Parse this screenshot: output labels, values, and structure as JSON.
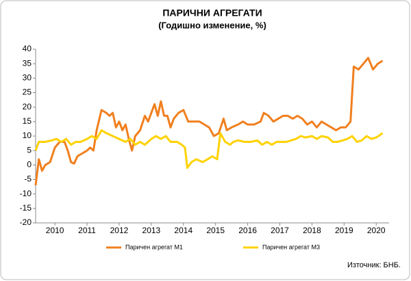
{
  "chart_data": {
    "type": "line",
    "title": "ПАРИЧНИ  АГРЕГАТИ",
    "subtitle": "(Годишно  изменение, %)",
    "source": "Източник: БНБ.",
    "xlim": [
      2009.9,
      2020.9
    ],
    "xticks": [
      {
        "value": 2010.5,
        "label": "2010"
      },
      {
        "value": 2011.5,
        "label": "2011"
      },
      {
        "value": 2012.5,
        "label": "2012"
      },
      {
        "value": 2013.5,
        "label": "2013"
      },
      {
        "value": 2014.5,
        "label": "2014"
      },
      {
        "value": 2015.5,
        "label": "2015"
      },
      {
        "value": 2016.5,
        "label": "2016"
      },
      {
        "value": 2017.5,
        "label": "2017"
      },
      {
        "value": 2018.5,
        "label": "2018"
      },
      {
        "value": 2019.5,
        "label": "2019"
      },
      {
        "value": 2020.5,
        "label": "2020"
      }
    ],
    "ylim": [
      -20,
      40
    ],
    "yticks": [
      -20,
      -15,
      -10,
      -5,
      0,
      5,
      10,
      15,
      20,
      25,
      30,
      35,
      40
    ],
    "legend": "bottom",
    "series": [
      {
        "name": "Паричен агрегат М1",
        "color": "#f07f1e",
        "x": [
          2009.9,
          2010.0,
          2010.1,
          2010.2,
          2010.35,
          2010.5,
          2010.65,
          2010.8,
          2010.9,
          2011.0,
          2011.1,
          2011.2,
          2011.35,
          2011.5,
          2011.6,
          2011.7,
          2011.8,
          2011.95,
          2012.1,
          2012.2,
          2012.3,
          2012.4,
          2012.5,
          2012.6,
          2012.7,
          2012.8,
          2012.9,
          2013.0,
          2013.15,
          2013.3,
          2013.4,
          2013.5,
          2013.6,
          2013.7,
          2013.8,
          2013.9,
          2014.0,
          2014.1,
          2014.2,
          2014.35,
          2014.5,
          2014.65,
          2014.8,
          2015.0,
          2015.15,
          2015.3,
          2015.45,
          2015.6,
          2015.75,
          2015.85,
          2016.0,
          2016.2,
          2016.35,
          2016.5,
          2016.7,
          2016.9,
          2017.0,
          2017.15,
          2017.3,
          2017.45,
          2017.6,
          2017.75,
          2017.9,
          2018.05,
          2018.2,
          2018.35,
          2018.5,
          2018.65,
          2018.8,
          2018.95,
          2019.1,
          2019.25,
          2019.4,
          2019.55,
          2019.7,
          2019.8,
          2019.95,
          2020.1,
          2020.25,
          2020.4,
          2020.55,
          2020.7
        ],
        "values": [
          -7,
          2,
          -2,
          0,
          1,
          6,
          8,
          8,
          5,
          1,
          0.5,
          3,
          4,
          5,
          6,
          5,
          12,
          19,
          18,
          17,
          18,
          13,
          15,
          12,
          14,
          9,
          5,
          10,
          12,
          17,
          15,
          18,
          21,
          17,
          22,
          17,
          17,
          13,
          16,
          18,
          19,
          15,
          15,
          15,
          14,
          13,
          10,
          11,
          16,
          12,
          13,
          14,
          15,
          14,
          14,
          15,
          18,
          17,
          15,
          16,
          17,
          17,
          16,
          17,
          16,
          14,
          15,
          13,
          15,
          14,
          13,
          12,
          13,
          13,
          15,
          34,
          33,
          35,
          37,
          33,
          35,
          36
        ]
      },
      {
        "name": "Паричен агрегат М3",
        "color": "#ffd200",
        "x": [
          2009.9,
          2010.0,
          2010.2,
          2010.4,
          2010.55,
          2010.7,
          2010.85,
          2011.0,
          2011.15,
          2011.3,
          2011.5,
          2011.65,
          2011.8,
          2011.95,
          2012.1,
          2012.3,
          2012.5,
          2012.7,
          2012.85,
          2013.0,
          2013.15,
          2013.3,
          2013.5,
          2013.65,
          2013.8,
          2013.95,
          2014.1,
          2014.3,
          2014.45,
          2014.55,
          2014.62,
          2014.75,
          2014.9,
          2015.1,
          2015.25,
          2015.4,
          2015.55,
          2015.65,
          2015.8,
          2015.95,
          2016.05,
          2016.2,
          2016.4,
          2016.6,
          2016.8,
          2016.95,
          2017.1,
          2017.25,
          2017.4,
          2017.55,
          2017.7,
          2017.85,
          2018.0,
          2018.15,
          2018.3,
          2018.5,
          2018.65,
          2018.8,
          2019.0,
          2019.15,
          2019.3,
          2019.45,
          2019.6,
          2019.75,
          2019.9,
          2020.05,
          2020.2,
          2020.35,
          2020.5,
          2020.7
        ],
        "values": [
          5,
          8,
          8,
          8.5,
          9,
          8,
          9,
          7,
          8,
          8,
          9,
          10,
          9,
          12,
          11,
          10,
          9,
          8,
          9,
          7,
          8,
          7,
          9,
          10,
          9,
          10,
          8,
          8,
          7,
          6,
          -1,
          1,
          2,
          1,
          2,
          3,
          2,
          11,
          8,
          7,
          8,
          8.5,
          8,
          8,
          8.5,
          7,
          8,
          7,
          8,
          8,
          8,
          8.5,
          9,
          10,
          9.5,
          10,
          9,
          10,
          9.5,
          8,
          8,
          8.5,
          9,
          10,
          8,
          8.5,
          10,
          9,
          9.5,
          11
        ]
      }
    ]
  }
}
